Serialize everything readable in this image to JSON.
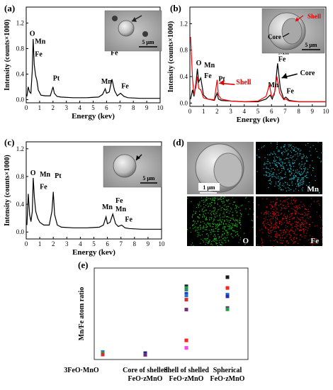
{
  "chart_data": [
    {
      "panel": "(a)",
      "type": "line",
      "xlabel": "Energy (kev)",
      "ylabel": "Intensity (counts×1000)",
      "xlim": [
        0,
        10
      ],
      "ylim": [
        -0.05,
        1.45
      ],
      "xticks": [
        "0",
        "1",
        "2",
        "3",
        "4",
        "5",
        "6",
        "7",
        "8",
        "9",
        "10"
      ],
      "yticks": [
        "0.0",
        "0.4",
        "0.8",
        "1.2"
      ],
      "series": [
        {
          "color": "#000000",
          "x": [
            0.05,
            0.15,
            0.25,
            0.35,
            0.45,
            0.52,
            0.6,
            0.7,
            0.8,
            0.9,
            1.1,
            1.4,
            1.8,
            2.0,
            2.1,
            2.3,
            2.6,
            3.5,
            4.5,
            5.4,
            5.7,
            5.9,
            6.0,
            6.2,
            6.4,
            6.6,
            6.8,
            7.05,
            7.3,
            7.6,
            8.5,
            9.5,
            10.0
          ],
          "y": [
            0.05,
            0.2,
            0.12,
            0.1,
            0.45,
            0.95,
            0.55,
            0.38,
            0.3,
            0.15,
            0.07,
            0.06,
            0.06,
            0.2,
            0.1,
            0.05,
            0.04,
            0.03,
            0.03,
            0.04,
            0.08,
            0.17,
            0.1,
            0.12,
            0.32,
            0.14,
            0.06,
            0.1,
            0.05,
            0.03,
            0.02,
            0.02,
            0.02
          ]
        }
      ],
      "annotations": [
        "O",
        "Mn",
        "Fe",
        "Pt",
        "Mn",
        "Mn",
        "Fe",
        "Fe"
      ],
      "inset_scale": "5 μm"
    },
    {
      "panel": "(b)",
      "type": "line",
      "xlabel": "Energy (kev)",
      "ylabel": "Intensity (counts×1000)",
      "xlim": [
        0,
        10
      ],
      "ylim": [
        -0.05,
        1.45
      ],
      "xticks": [
        "0",
        "1",
        "2",
        "3",
        "4",
        "5",
        "6",
        "7",
        "8",
        "9",
        "10"
      ],
      "yticks": [
        "0.0",
        "0.4",
        "0.8",
        "1.2"
      ],
      "series": [
        {
          "name": "Core",
          "color": "#000000",
          "x": [
            0.05,
            0.2,
            0.3,
            0.45,
            0.55,
            0.65,
            0.8,
            1.0,
            1.3,
            1.8,
            2.0,
            2.1,
            2.3,
            3.0,
            4.0,
            5.0,
            5.6,
            5.9,
            6.05,
            6.25,
            6.45,
            6.65,
            6.9,
            7.05,
            7.3,
            8.0,
            9.0,
            10.0
          ],
          "y": [
            0.06,
            0.2,
            0.1,
            0.3,
            0.52,
            0.32,
            0.38,
            0.12,
            0.06,
            0.04,
            0.15,
            0.06,
            0.04,
            0.03,
            0.02,
            0.02,
            0.06,
            0.12,
            0.06,
            0.18,
            0.6,
            0.22,
            0.06,
            0.09,
            0.04,
            0.02,
            0.02,
            0.02
          ]
        },
        {
          "name": "Shell",
          "color": "#ff0000",
          "x": [
            0.05,
            0.2,
            0.3,
            0.45,
            0.55,
            0.65,
            0.8,
            1.0,
            1.3,
            1.8,
            2.0,
            2.1,
            2.3,
            3.0,
            4.0,
            5.0,
            5.6,
            5.85,
            6.0,
            6.2,
            6.4,
            6.6,
            6.9,
            7.05,
            7.3,
            8.0,
            9.0,
            10.0
          ],
          "y": [
            1.0,
            0.35,
            0.12,
            0.25,
            0.4,
            0.22,
            0.2,
            0.08,
            0.06,
            0.05,
            0.35,
            0.12,
            0.06,
            0.03,
            0.02,
            0.03,
            0.1,
            0.28,
            0.1,
            0.12,
            0.4,
            0.15,
            0.05,
            0.06,
            0.03,
            0.02,
            0.02,
            0.02
          ]
        }
      ],
      "annotations": [
        "O",
        "Mn",
        "Fe",
        "Pt",
        "Shell",
        "Mn",
        "Mn",
        "Fe",
        "Fe",
        "Core"
      ],
      "inset_labels": [
        "Shell",
        "Core"
      ],
      "inset_scale": "5 μm"
    },
    {
      "panel": "(c)",
      "type": "line",
      "xlabel": "Energy (kev)",
      "ylabel": "Intensity (counts×1000)",
      "xlim": [
        0,
        10
      ],
      "ylim": [
        -0.1,
        1.3
      ],
      "xticks": [
        "0",
        "1",
        "2",
        "3",
        "4",
        "5",
        "6",
        "7",
        "8",
        "9",
        "10"
      ],
      "yticks": [
        "0.0",
        "0.4",
        "0.8",
        "1.2"
      ],
      "series": [
        {
          "color": "#000000",
          "x": [
            0.05,
            0.15,
            0.25,
            0.35,
            0.45,
            0.52,
            0.6,
            0.7,
            0.85,
            1.0,
            1.3,
            1.7,
            1.9,
            2.0,
            2.1,
            2.3,
            2.6,
            3.5,
            4.5,
            5.4,
            5.7,
            5.9,
            6.0,
            6.2,
            6.4,
            6.6,
            6.8,
            7.05,
            7.3,
            7.6,
            8.5,
            9.5,
            10.0
          ],
          "y": [
            0.1,
            0.55,
            0.25,
            0.15,
            0.3,
            0.78,
            0.5,
            0.3,
            0.2,
            0.14,
            0.1,
            0.1,
            0.3,
            0.58,
            0.25,
            0.1,
            0.07,
            0.06,
            0.06,
            0.07,
            0.1,
            0.22,
            0.12,
            0.14,
            0.26,
            0.12,
            0.08,
            0.1,
            0.06,
            0.05,
            0.04,
            0.04,
            0.04
          ]
        }
      ],
      "annotations": [
        "O",
        "Mn",
        "Fe",
        "Pt",
        "Mn",
        "Fe",
        "Mn",
        "Fe"
      ],
      "inset_scale": "5 μm"
    },
    {
      "panel": "(e)",
      "type": "scatter",
      "xlabel": "",
      "ylabel": "Mn/Fe atom ratio",
      "categories": [
        "3FeO·MnO",
        "Core of shelled FeO·zMnO",
        "Shell of shelled FeO·zMnO",
        "Spherical FeO·zMnO"
      ],
      "category_lines": [
        [
          "3FeO·MnO"
        ],
        [
          "Core of shelled",
          "FeO·zMnO"
        ],
        [
          "Shell of shelled",
          "FeO·zMnO"
        ],
        [
          "Spherical",
          "FeO·zMnO"
        ]
      ],
      "ylim": [
        0,
        5.5
      ],
      "points": [
        {
          "category": 0,
          "y": 0.45,
          "color": "#2a6fdb"
        },
        {
          "category": 0,
          "y": 0.38,
          "color": "#20a040"
        },
        {
          "category": 0,
          "y": 0.3,
          "color": "#d03030"
        },
        {
          "category": 1,
          "y": 0.38,
          "color": "#1a1a1a"
        },
        {
          "category": 1,
          "y": 0.33,
          "color": "#2030b0"
        },
        {
          "category": 1,
          "y": 0.28,
          "color": "#6a2a8a"
        },
        {
          "category": 2,
          "y": 4.4,
          "color": "#1a1a1a"
        },
        {
          "category": 2,
          "y": 4.3,
          "color": "#20a040"
        },
        {
          "category": 2,
          "y": 4.2,
          "color": "#2a8a6a"
        },
        {
          "category": 2,
          "y": 3.95,
          "color": "#2030b0"
        },
        {
          "category": 2,
          "y": 3.85,
          "color": "#2a6fdb"
        },
        {
          "category": 2,
          "y": 3.6,
          "color": "#d03030"
        },
        {
          "category": 2,
          "y": 3.0,
          "color": "#7a2a7a"
        },
        {
          "category": 2,
          "y": 1.15,
          "color": "#ff2020"
        },
        {
          "category": 2,
          "y": 0.7,
          "color": "#ff40ff"
        },
        {
          "category": 3,
          "y": 4.95,
          "color": "#1a1a1a"
        },
        {
          "category": 3,
          "y": 4.3,
          "color": "#ff2020"
        },
        {
          "category": 3,
          "y": 3.9,
          "color": "#2a6fdb"
        },
        {
          "category": 3,
          "y": 3.8,
          "color": "#2030b0"
        },
        {
          "category": 3,
          "y": 3.1,
          "color": "#7a2a7a"
        },
        {
          "category": 3,
          "y": 3.02,
          "color": "#20a040"
        }
      ]
    }
  ],
  "panel_d": {
    "label": "(d)",
    "scale": "1 μm",
    "maps": [
      {
        "element": "Mn",
        "color": "#20c0d0"
      },
      {
        "element": "O",
        "color": "#20c020"
      },
      {
        "element": "Fe",
        "color": "#e01010"
      }
    ]
  }
}
